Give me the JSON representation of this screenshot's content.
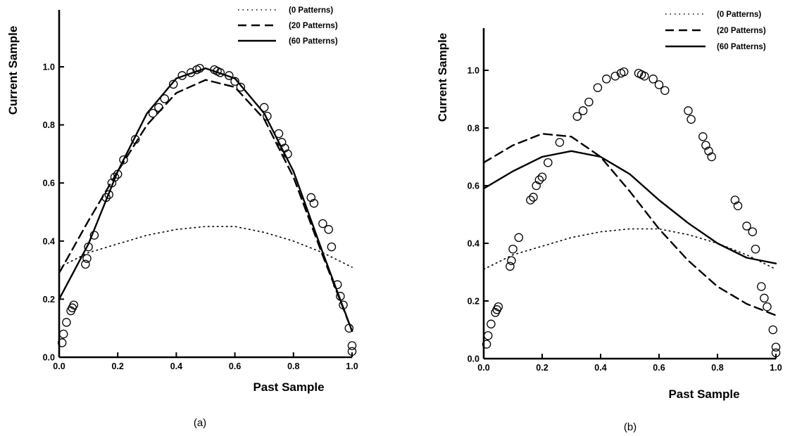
{
  "chart_data": [
    {
      "type": "line",
      "panel_label": "(a)",
      "xlabel": "Past Sample",
      "ylabel": "Current Sample",
      "xlim": [
        0,
        1
      ],
      "ylim": [
        0,
        1
      ],
      "xticks": [
        "0.0",
        "0.2",
        "0.4",
        "0.6",
        "0.8",
        "1.0"
      ],
      "yticks": [
        "0.0",
        "0.2",
        "0.4",
        "0.6",
        "0.8",
        "1.0"
      ],
      "legend_position": "top-right",
      "grid": false,
      "series": [
        {
          "name": "(0 Patterns)",
          "style": "dotted",
          "x": [
            0.0,
            0.1,
            0.2,
            0.3,
            0.4,
            0.5,
            0.6,
            0.7,
            0.8,
            0.9,
            1.0
          ],
          "y": [
            0.31,
            0.36,
            0.39,
            0.42,
            0.44,
            0.45,
            0.45,
            0.43,
            0.4,
            0.36,
            0.31
          ]
        },
        {
          "name": "(20 Patterns)",
          "style": "dashed",
          "x": [
            0.0,
            0.1,
            0.2,
            0.3,
            0.4,
            0.5,
            0.6,
            0.7,
            0.8,
            0.9,
            1.0
          ],
          "y": [
            0.29,
            0.47,
            0.64,
            0.8,
            0.91,
            0.955,
            0.93,
            0.82,
            0.62,
            0.35,
            0.09
          ]
        },
        {
          "name": "(60 Patterns)",
          "style": "solid",
          "x": [
            0.0,
            0.1,
            0.2,
            0.3,
            0.4,
            0.5,
            0.6,
            0.7,
            0.8,
            0.9,
            1.0
          ],
          "y": [
            0.2,
            0.39,
            0.64,
            0.84,
            0.96,
            0.995,
            0.96,
            0.84,
            0.64,
            0.36,
            0.09
          ]
        }
      ],
      "scatter_points": {
        "x": [
          0.01,
          0.015,
          0.025,
          0.04,
          0.045,
          0.05,
          0.09,
          0.095,
          0.1,
          0.12,
          0.16,
          0.17,
          0.18,
          0.19,
          0.2,
          0.22,
          0.26,
          0.32,
          0.34,
          0.36,
          0.39,
          0.42,
          0.45,
          0.47,
          0.48,
          0.53,
          0.54,
          0.55,
          0.58,
          0.6,
          0.62,
          0.7,
          0.71,
          0.75,
          0.76,
          0.77,
          0.78,
          0.86,
          0.87,
          0.9,
          0.92,
          0.93,
          0.95,
          0.96,
          0.97,
          0.99,
          1.0,
          1.0
        ],
        "y": [
          0.05,
          0.08,
          0.12,
          0.16,
          0.17,
          0.18,
          0.32,
          0.34,
          0.38,
          0.42,
          0.55,
          0.56,
          0.6,
          0.62,
          0.63,
          0.68,
          0.75,
          0.84,
          0.86,
          0.89,
          0.94,
          0.97,
          0.98,
          0.99,
          0.995,
          0.99,
          0.985,
          0.98,
          0.97,
          0.95,
          0.93,
          0.86,
          0.83,
          0.77,
          0.74,
          0.72,
          0.7,
          0.55,
          0.53,
          0.46,
          0.44,
          0.38,
          0.25,
          0.21,
          0.18,
          0.1,
          0.04,
          0.02
        ]
      }
    },
    {
      "type": "line",
      "panel_label": "(b)",
      "xlabel": "Past Sample",
      "ylabel": "Current Sample",
      "xlim": [
        0,
        1
      ],
      "ylim": [
        0,
        1
      ],
      "xticks": [
        "0.0",
        "0.2",
        "0.4",
        "0.6",
        "0.8",
        "1.0"
      ],
      "yticks": [
        "0.0",
        "0.2",
        "0.4",
        "0.6",
        "0.8",
        "1.0"
      ],
      "legend_position": "top-right",
      "grid": false,
      "series": [
        {
          "name": "(0 Patterns)",
          "style": "dotted",
          "x": [
            0.0,
            0.1,
            0.2,
            0.3,
            0.4,
            0.5,
            0.6,
            0.7,
            0.8,
            0.9,
            1.0
          ],
          "y": [
            0.31,
            0.36,
            0.39,
            0.42,
            0.44,
            0.45,
            0.45,
            0.43,
            0.4,
            0.36,
            0.31
          ]
        },
        {
          "name": "(20 Patterns)",
          "style": "dashed",
          "x": [
            0.0,
            0.1,
            0.2,
            0.3,
            0.4,
            0.5,
            0.6,
            0.7,
            0.8,
            0.9,
            1.0
          ],
          "y": [
            0.68,
            0.74,
            0.78,
            0.77,
            0.7,
            0.58,
            0.45,
            0.34,
            0.25,
            0.19,
            0.15
          ]
        },
        {
          "name": "(60 Patterns)",
          "style": "solid",
          "x": [
            0.0,
            0.1,
            0.2,
            0.3,
            0.4,
            0.5,
            0.6,
            0.7,
            0.8,
            0.9,
            1.0
          ],
          "y": [
            0.59,
            0.65,
            0.7,
            0.72,
            0.7,
            0.64,
            0.55,
            0.47,
            0.4,
            0.35,
            0.33
          ]
        }
      ],
      "scatter_points": {
        "x": [
          0.01,
          0.015,
          0.025,
          0.04,
          0.045,
          0.05,
          0.09,
          0.095,
          0.1,
          0.12,
          0.16,
          0.17,
          0.18,
          0.19,
          0.2,
          0.22,
          0.26,
          0.32,
          0.34,
          0.36,
          0.39,
          0.42,
          0.45,
          0.47,
          0.48,
          0.53,
          0.54,
          0.55,
          0.58,
          0.6,
          0.62,
          0.7,
          0.71,
          0.75,
          0.76,
          0.77,
          0.78,
          0.86,
          0.87,
          0.9,
          0.92,
          0.93,
          0.95,
          0.96,
          0.97,
          0.99,
          1.0,
          1.0
        ],
        "y": [
          0.05,
          0.08,
          0.12,
          0.16,
          0.17,
          0.18,
          0.32,
          0.34,
          0.38,
          0.42,
          0.55,
          0.56,
          0.6,
          0.62,
          0.63,
          0.68,
          0.75,
          0.84,
          0.86,
          0.89,
          0.94,
          0.97,
          0.98,
          0.99,
          0.995,
          0.99,
          0.985,
          0.98,
          0.97,
          0.95,
          0.93,
          0.86,
          0.83,
          0.77,
          0.74,
          0.72,
          0.7,
          0.55,
          0.53,
          0.46,
          0.44,
          0.38,
          0.25,
          0.21,
          0.18,
          0.1,
          0.04,
          0.02
        ]
      }
    }
  ]
}
